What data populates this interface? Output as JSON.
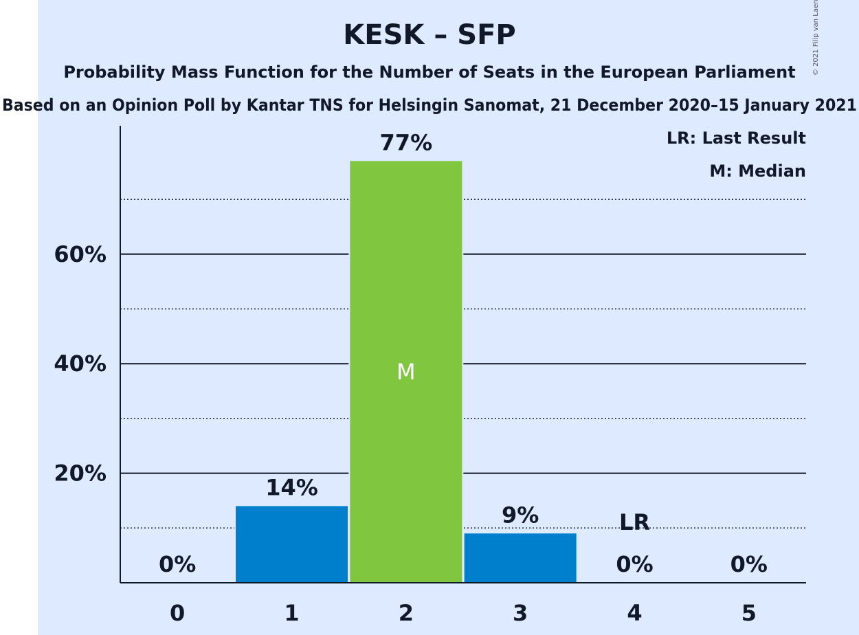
{
  "chart_data": {
    "type": "bar",
    "title": "KESK – SFP",
    "subtitle": "Probability Mass Function for the Number of Seats in the European Parliament",
    "subtitle2": "Based on an Opinion Poll by Kantar TNS for Helsingin Sanomat, 21 December 2020–15 January 2021",
    "copyright": "© 2021 Filip van Laenen",
    "legend": [
      "LR: Last Result",
      "M: Median"
    ],
    "categories": [
      "0",
      "1",
      "2",
      "3",
      "4",
      "5"
    ],
    "values": [
      0,
      14,
      77,
      9,
      0,
      0
    ],
    "value_labels": [
      "0%",
      "14%",
      "77%",
      "9%",
      "0%",
      "0%"
    ],
    "median_index": 2,
    "median_label": "M",
    "last_result_index": 4,
    "last_result_label": "LR",
    "ylim": [
      0,
      80
    ],
    "y_ticks": [
      20,
      40,
      60
    ],
    "y_tick_labels": [
      "20%",
      "40%",
      "60%"
    ],
    "minor_gridlines": [
      10,
      30,
      50,
      70
    ],
    "colors": {
      "bar": "#0080cc",
      "median_bar": "#80c63e",
      "background": "#ddeaff",
      "text": "#111827"
    }
  }
}
